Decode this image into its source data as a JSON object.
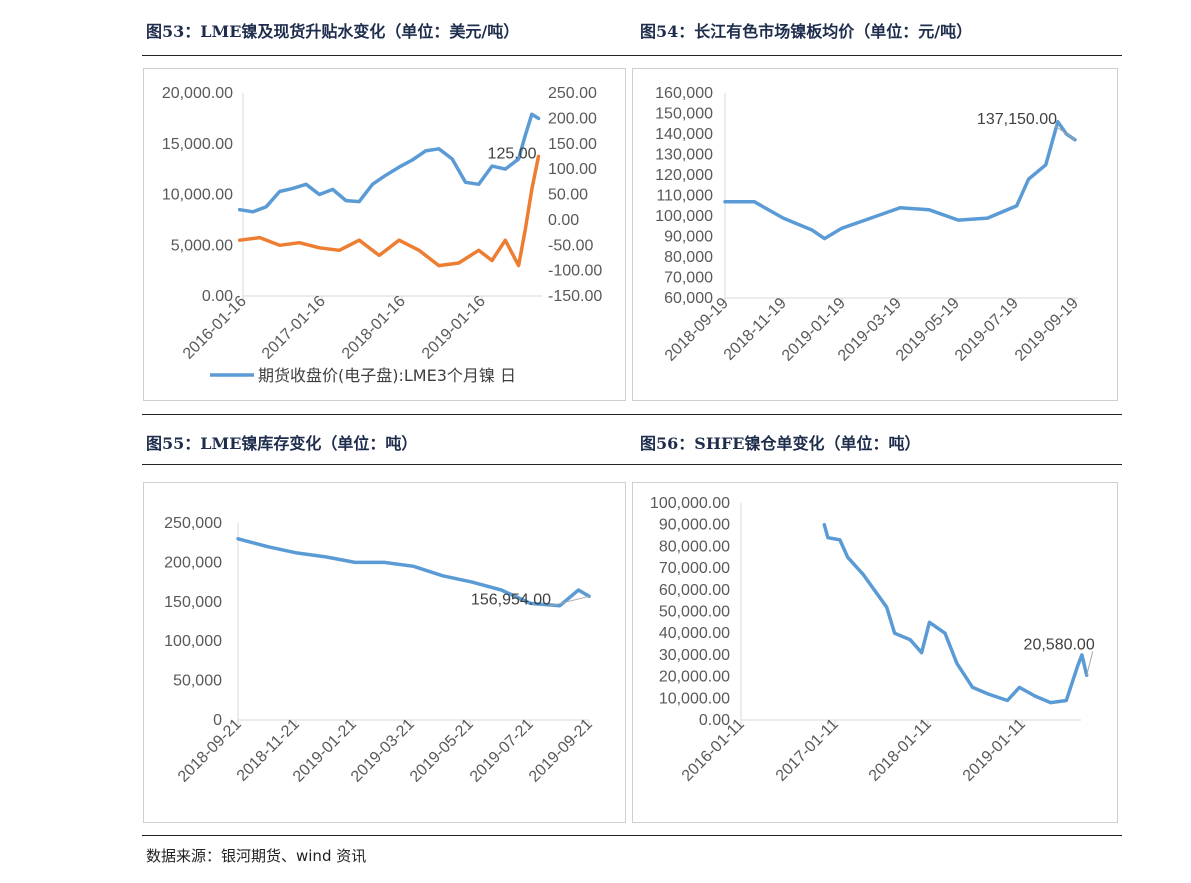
{
  "titles": {
    "fig53": "图53：LME镍及现货升贴水变化（单位：美元/吨）",
    "fig54": "图54：长江有色市场镍板均价（单位：元/吨）",
    "fig55": "图55：LME镍库存变化（单位：吨）",
    "fig56": "图56：SHFE镍仓单变化（单位：吨）"
  },
  "source": "数据来源：银河期货、wind 资讯",
  "colors": {
    "blue": "#5b9bd5",
    "orange": "#ed7d31",
    "axis": "#d9d9d9",
    "tick": "#595959"
  },
  "chart_data": [
    {
      "id": "fig53",
      "type": "line",
      "title": "图53：LME镍及现货升贴水变化（单位：美元/吨）",
      "x_ticks": [
        "2016-01-16",
        "2017-01-16",
        "2018-01-16",
        "2019-01-16"
      ],
      "y_ticks": [
        "20,000.00",
        "15,000.00",
        "10,000.00",
        "5,000.00",
        "0.00"
      ],
      "y2_ticks": [
        "250.00",
        "200.00",
        "150.00",
        "100.00",
        "50.00",
        "0.00",
        "-50.00",
        "-100.00",
        "-150.00"
      ],
      "ylim": [
        0,
        20000
      ],
      "y2lim": [
        -150,
        250
      ],
      "annotation": "125.00",
      "legend": "期货收盘价(电子盘):LME3个月镍 日",
      "legend_position": "bottom",
      "series": [
        {
          "name": "期货收盘价(电子盘):LME3个月镍 日",
          "axis": "left",
          "color": "#5b9bd5",
          "x": [
            "2016-01",
            "2016-03",
            "2016-05",
            "2016-07",
            "2016-09",
            "2016-11",
            "2017-01",
            "2017-03",
            "2017-05",
            "2017-07",
            "2017-09",
            "2017-11",
            "2018-01",
            "2018-03",
            "2018-05",
            "2018-07",
            "2018-09",
            "2018-11",
            "2019-01",
            "2019-03",
            "2019-05",
            "2019-07",
            "2019-08",
            "2019-09",
            "2019-10"
          ],
          "values": [
            8500,
            8300,
            8800,
            10300,
            10600,
            11000,
            10000,
            10500,
            9400,
            9300,
            11000,
            11900,
            12700,
            13400,
            14300,
            14500,
            13500,
            11200,
            11000,
            12800,
            12500,
            13500,
            15800,
            17900,
            17500
          ]
        },
        {
          "name": "",
          "axis": "right",
          "color": "#ed7d31",
          "x": [
            "2016-01",
            "2016-04",
            "2016-07",
            "2016-10",
            "2017-01",
            "2017-04",
            "2017-07",
            "2017-10",
            "2018-01",
            "2018-04",
            "2018-07",
            "2018-10",
            "2019-01",
            "2019-03",
            "2019-05",
            "2019-07",
            "2019-08",
            "2019-09",
            "2019-10"
          ],
          "values": [
            -40,
            -35,
            -50,
            -45,
            -55,
            -60,
            -40,
            -70,
            -40,
            -60,
            -90,
            -85,
            -60,
            -80,
            -40,
            -90,
            -20,
            60,
            125
          ]
        }
      ]
    },
    {
      "id": "fig54",
      "type": "line",
      "title": "图54：长江有色市场镍板均价（单位：元/吨）",
      "x_ticks": [
        "2018-09-19",
        "2018-11-19",
        "2019-01-19",
        "2019-03-19",
        "2019-05-19",
        "2019-07-19",
        "2019-09-19"
      ],
      "y_ticks": [
        "160,000",
        "150,000",
        "140,000",
        "130,000",
        "120,000",
        "110,000",
        "100,000",
        "90,000",
        "80,000",
        "70,000",
        "60,000"
      ],
      "ylim": [
        60000,
        160000
      ],
      "annotation": "137,150.00",
      "series": [
        {
          "name": "",
          "color": "#5b9bd5",
          "x": [
            "2018-09-19",
            "2018-10-19",
            "2018-11-19",
            "2018-12-19",
            "2019-01-01",
            "2019-01-19",
            "2019-02-19",
            "2019-03-19",
            "2019-04-19",
            "2019-05-19",
            "2019-06-19",
            "2019-07-19",
            "2019-08-01",
            "2019-08-19",
            "2019-09-01",
            "2019-09-10",
            "2019-09-19"
          ],
          "values": [
            107000,
            107000,
            99000,
            93000,
            89000,
            94000,
            99000,
            104000,
            103000,
            98000,
            99000,
            105000,
            118000,
            125000,
            146000,
            140000,
            137150
          ]
        }
      ]
    },
    {
      "id": "fig55",
      "type": "line",
      "title": "图55：LME镍库存变化（单位：吨）",
      "x_ticks": [
        "2018-09-21",
        "2018-11-21",
        "2019-01-21",
        "2019-03-21",
        "2019-05-21",
        "2019-07-21",
        "2019-09-21"
      ],
      "y_ticks": [
        "250,000",
        "200,000",
        "150,000",
        "100,000",
        "50,000",
        "0"
      ],
      "ylim": [
        0,
        250000
      ],
      "annotation": "156,954.00",
      "series": [
        {
          "name": "",
          "color": "#5b9bd5",
          "x": [
            "2018-09-21",
            "2018-10-21",
            "2018-11-21",
            "2018-12-21",
            "2019-01-21",
            "2019-02-21",
            "2019-03-21",
            "2019-04-21",
            "2019-05-21",
            "2019-06-21",
            "2019-07-21",
            "2019-08-21",
            "2019-09-10",
            "2019-09-21"
          ],
          "values": [
            230000,
            220000,
            212000,
            207000,
            200000,
            200000,
            195000,
            183000,
            175000,
            165000,
            148000,
            145000,
            165000,
            156954
          ]
        }
      ]
    },
    {
      "id": "fig56",
      "type": "line",
      "title": "图56：SHFE镍仓单变化（单位：吨）",
      "x_ticks": [
        "2016-01-11",
        "2017-01-11",
        "2018-01-11",
        "2019-01-11"
      ],
      "y_ticks": [
        "100,000.00",
        "90,000.00",
        "80,000.00",
        "70,000.00",
        "60,000.00",
        "50,000.00",
        "40,000.00",
        "30,000.00",
        "20,000.00",
        "10,000.00",
        "0.00"
      ],
      "ylim": [
        0,
        100000
      ],
      "annotation": "20,580.00",
      "series": [
        {
          "name": "",
          "color": "#5b9bd5",
          "x": [
            "2016-12-01",
            "2016-12-15",
            "2017-02-01",
            "2017-03-01",
            "2017-05-01",
            "2017-08-01",
            "2017-09-01",
            "2017-11-01",
            "2017-12-15",
            "2018-01-15",
            "2018-03-15",
            "2018-05-01",
            "2018-07-01",
            "2018-09-01",
            "2018-11-15",
            "2019-01-01",
            "2019-03-01",
            "2019-05-01",
            "2019-07-01",
            "2019-08-15",
            "2019-09-01",
            "2019-09-20"
          ],
          "values": [
            90000,
            84000,
            83000,
            75000,
            67000,
            52000,
            40000,
            37000,
            31000,
            45000,
            40000,
            26000,
            15000,
            12000,
            9000,
            15000,
            11000,
            8000,
            9000,
            25000,
            30000,
            20580
          ]
        }
      ]
    }
  ]
}
